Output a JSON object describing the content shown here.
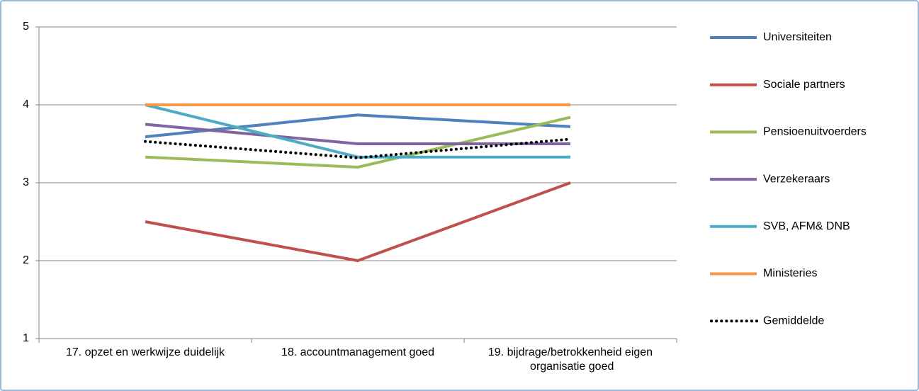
{
  "chart_data": {
    "type": "line",
    "categories": [
      "17. opzet en werkwijze duidelijk",
      "18. accountmanagement goed",
      "19. bijdrage/betrokkenheid eigen organisatie goed"
    ],
    "series": [
      {
        "name": "Universiteiten",
        "color": "#4f81bd",
        "values": [
          3.59,
          3.87,
          3.72
        ]
      },
      {
        "name": "Sociale partners",
        "color": "#c0504d",
        "values": [
          2.5,
          2.0,
          3.0
        ]
      },
      {
        "name": "Pensioenuitvoerders",
        "color": "#9bbb59",
        "values": [
          3.33,
          3.2,
          3.84
        ]
      },
      {
        "name": "Verzekeraars",
        "color": "#8064a2",
        "values": [
          3.75,
          3.5,
          3.5
        ]
      },
      {
        "name": "SVB, AFM& DNB",
        "color": "#4bacc6",
        "values": [
          4.0,
          3.33,
          3.33
        ]
      },
      {
        "name": "Ministeries",
        "color": "#f79646",
        "values": [
          4.0,
          4.0,
          4.0
        ]
      },
      {
        "name": "Gemiddelde",
        "color": "#000000",
        "dotted": true,
        "values": [
          3.53,
          3.32,
          3.56
        ]
      }
    ],
    "ylim": [
      1,
      5
    ],
    "yticks": [
      1,
      2,
      3,
      4,
      5
    ],
    "grid": true,
    "legend": "right"
  }
}
